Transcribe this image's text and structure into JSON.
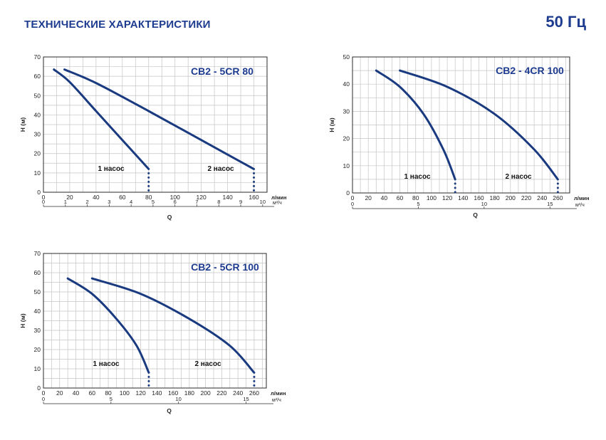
{
  "header": {
    "title": "ТЕХНИЧЕСКИЕ ХАРАКТЕРИСТИКИ",
    "frequency": "50 Гц"
  },
  "colors": {
    "curve": "#1a3a80",
    "title": "#1d3b8f",
    "grid": "#c4c4c4",
    "frame": "#2a2a2a"
  },
  "chart_data": [
    {
      "type": "line",
      "title": "CB2 - 5CR 80",
      "ylabel": "H (м)",
      "xlabel": "Q",
      "unit_lpm": "л/мин",
      "unit_m3h": "м³/ч",
      "ylim": [
        0,
        70
      ],
      "xlim_lpm": [
        0,
        170
      ],
      "y_ticks": [
        "0",
        "10",
        "20",
        "30",
        "40",
        "50",
        "60",
        "70"
      ],
      "x_ticks_lpm": [
        "0",
        "20",
        "40",
        "60",
        "80",
        "100",
        "120",
        "140",
        "160"
      ],
      "x_ticks_m3h": [
        "0",
        "1",
        "2",
        "3",
        "4",
        "5",
        "6",
        "7",
        "8",
        "9",
        "10"
      ],
      "grid": true,
      "series": [
        {
          "name": "1 насос",
          "x": [
            8,
            20,
            40,
            60,
            80
          ],
          "y": [
            63.5,
            57,
            42,
            27,
            12
          ]
        },
        {
          "name": "2 насос",
          "x": [
            16,
            40,
            80,
            120,
            160
          ],
          "y": [
            63.5,
            56.5,
            42,
            27,
            12
          ]
        }
      ]
    },
    {
      "type": "line",
      "title": "CB2 - 4CR 100",
      "ylabel": "H (м)",
      "xlabel": "Q",
      "unit_lpm": "л/мин",
      "unit_m3h": "м³/ч",
      "ylim": [
        0,
        50
      ],
      "xlim_lpm": [
        0,
        275
      ],
      "y_ticks": [
        "0",
        "10",
        "20",
        "30",
        "40",
        "50"
      ],
      "x_ticks_lpm": [
        "0",
        "20",
        "40",
        "60",
        "80",
        "100",
        "120",
        "140",
        "160",
        "180",
        "200",
        "220",
        "240",
        "260"
      ],
      "x_ticks_m3h": [
        "0",
        "5",
        "10",
        "15"
      ],
      "grid": true,
      "series": [
        {
          "name": "1 насос",
          "x": [
            30,
            60,
            90,
            115,
            130
          ],
          "y": [
            45,
            39,
            29,
            16,
            5
          ]
        },
        {
          "name": "2 насос",
          "x": [
            60,
            120,
            180,
            230,
            260
          ],
          "y": [
            45,
            39,
            29,
            16,
            5
          ]
        }
      ]
    },
    {
      "type": "line",
      "title": "CB2 - 5CR 100",
      "ylabel": "H (м)",
      "xlabel": "Q",
      "unit_lpm": "л/мин",
      "unit_m3h": "м³/ч",
      "ylim": [
        0,
        70
      ],
      "xlim_lpm": [
        0,
        275
      ],
      "y_ticks": [
        "0",
        "10",
        "20",
        "30",
        "40",
        "50",
        "60",
        "70"
      ],
      "x_ticks_lpm": [
        "0",
        "20",
        "40",
        "60",
        "80",
        "100",
        "120",
        "140",
        "160",
        "180",
        "200",
        "220",
        "240",
        "260"
      ],
      "x_ticks_m3h": [
        "0",
        "5",
        "10",
        "15"
      ],
      "grid": true,
      "series": [
        {
          "name": "1 насос",
          "x": [
            30,
            60,
            90,
            115,
            130
          ],
          "y": [
            57,
            49,
            36,
            22,
            8
          ]
        },
        {
          "name": "2 насос",
          "x": [
            60,
            120,
            180,
            230,
            260
          ],
          "y": [
            57,
            49,
            36,
            22,
            8
          ]
        }
      ]
    }
  ]
}
